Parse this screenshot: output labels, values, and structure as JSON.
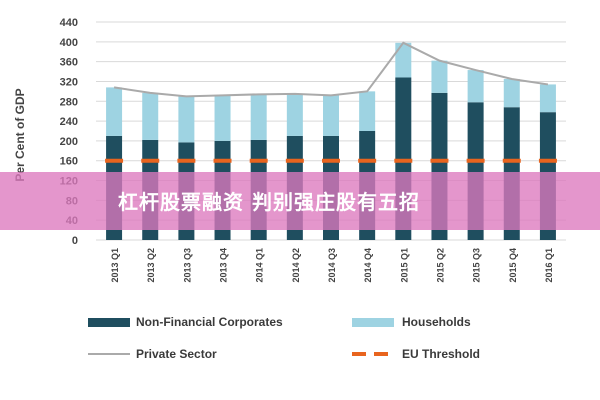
{
  "chart_data": {
    "type": "bar",
    "ylabel": "Per Cent of GDP",
    "ylim": [
      0,
      440
    ],
    "yticks": [
      0,
      40,
      80,
      120,
      160,
      200,
      240,
      280,
      320,
      360,
      400,
      440
    ],
    "categories": [
      "2013 Q1",
      "2013 Q2",
      "2013 Q3",
      "2013 Q4",
      "2014 Q1",
      "2014 Q2",
      "2014 Q3",
      "2014 Q4",
      "2015 Q1",
      "2015 Q2",
      "2015 Q3",
      "2015 Q4",
      "2016 Q1"
    ],
    "series": [
      {
        "name": "Non-Financial Corporates",
        "kind": "stacked-bar",
        "color": "#1f4e5f",
        "values": [
          210,
          202,
          197,
          200,
          202,
          210,
          210,
          220,
          328,
          297,
          278,
          268,
          258
        ]
      },
      {
        "name": "Households",
        "kind": "stacked-bar",
        "color": "#9ed3e2",
        "values": [
          98,
          95,
          93,
          92,
          92,
          85,
          82,
          80,
          70,
          65,
          65,
          57,
          56
        ]
      },
      {
        "name": "Private Sector",
        "kind": "line",
        "color": "#aaaaaa",
        "values": [
          308,
          297,
          290,
          292,
          294,
          295,
          292,
          300,
          398,
          362,
          343,
          325,
          314
        ]
      },
      {
        "name": "EU Threshold",
        "kind": "dashed-line",
        "color": "#e8641e",
        "values": [
          160,
          160,
          160,
          160,
          160,
          160,
          160,
          160,
          160,
          160,
          160,
          160,
          160
        ]
      }
    ],
    "grid": true,
    "legend_position": "bottom"
  },
  "overlay": {
    "banner_text": "杠杆股票融资 判别强庄股有五招"
  }
}
